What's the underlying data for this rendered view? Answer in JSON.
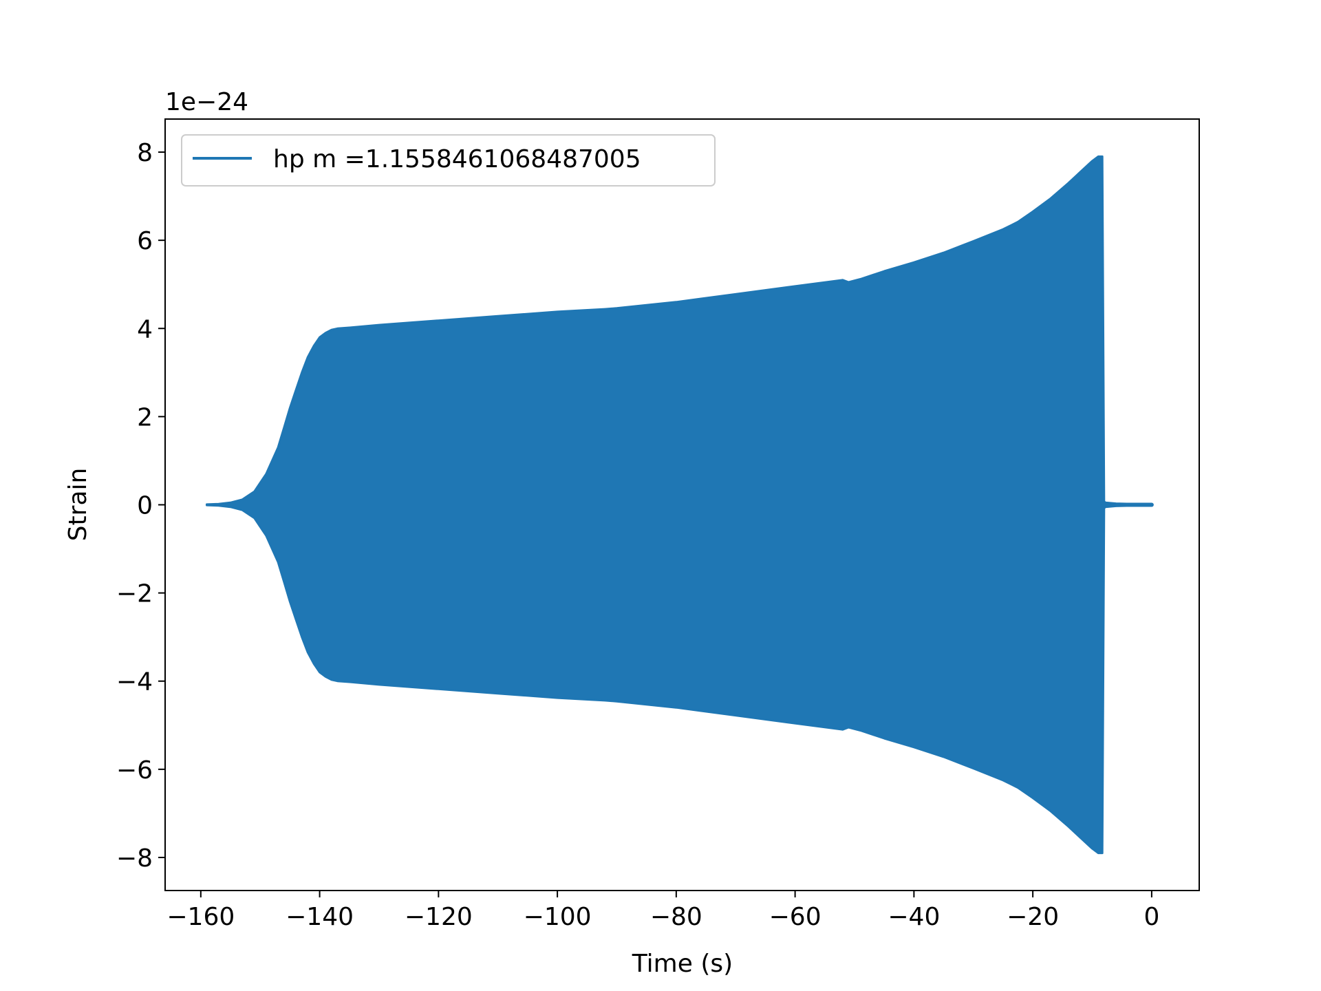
{
  "chart_data": {
    "type": "line",
    "title": "",
    "xlabel": "Time (s)",
    "ylabel": "Strain",
    "y_offset_text": "1e−24",
    "xlim": [
      -166,
      8
    ],
    "ylim": [
      -8.75,
      8.75
    ],
    "xticks": [
      -160,
      -140,
      -120,
      -100,
      -80,
      -60,
      -40,
      -20,
      0
    ],
    "xtick_labels": [
      "−160",
      "−140",
      "−120",
      "−100",
      "−80",
      "−60",
      "−40",
      "−20",
      "0"
    ],
    "yticks": [
      8,
      6,
      4,
      2,
      0,
      -2,
      -4,
      -6,
      -8
    ],
    "ytick_labels": [
      "8",
      "6",
      "4",
      "2",
      "0",
      "−2",
      "−4",
      "−6",
      "−8"
    ],
    "grid": false,
    "legend_position": "top-left",
    "series": [
      {
        "name": "hp m =1.1558461068487005",
        "color": "#1f77b4",
        "envelope_x": [
          -159,
          -157,
          -155,
          -153,
          -151,
          -149,
          -147,
          -146,
          -145,
          -144,
          -143,
          -142,
          -141,
          -140,
          -139,
          -138,
          -137,
          -135,
          -130,
          -120,
          -110,
          -100,
          -92,
          -90,
          -85,
          -80,
          -70,
          -60,
          -52,
          -51,
          -49,
          -45,
          -40,
          -35,
          -30,
          -25,
          -23.5,
          -22.5,
          -20,
          -17,
          -14,
          -12,
          -10,
          -9,
          -8.3,
          -8.0,
          -7.8,
          -6,
          -3,
          0
        ],
        "envelope_upper": [
          0.01,
          0.02,
          0.05,
          0.12,
          0.3,
          0.7,
          1.3,
          1.75,
          2.2,
          2.6,
          3.0,
          3.35,
          3.6,
          3.8,
          3.9,
          3.97,
          4.0,
          4.02,
          4.08,
          4.18,
          4.28,
          4.38,
          4.44,
          4.46,
          4.53,
          4.6,
          4.78,
          4.96,
          5.1,
          5.05,
          5.12,
          5.3,
          5.5,
          5.72,
          5.98,
          6.25,
          6.35,
          6.42,
          6.65,
          6.95,
          7.3,
          7.55,
          7.8,
          7.9,
          7.9,
          0.08,
          0.05,
          0.03,
          0.02,
          0.01
        ],
        "envelope_lower": [
          -0.01,
          -0.02,
          -0.05,
          -0.12,
          -0.3,
          -0.7,
          -1.3,
          -1.75,
          -2.2,
          -2.6,
          -3.0,
          -3.35,
          -3.6,
          -3.8,
          -3.9,
          -3.97,
          -4.0,
          -4.02,
          -4.08,
          -4.18,
          -4.28,
          -4.38,
          -4.44,
          -4.46,
          -4.53,
          -4.6,
          -4.78,
          -4.96,
          -5.1,
          -5.05,
          -5.12,
          -5.3,
          -5.5,
          -5.72,
          -5.98,
          -6.25,
          -6.35,
          -6.42,
          -6.65,
          -6.95,
          -7.3,
          -7.55,
          -7.8,
          -7.9,
          -7.9,
          -0.08,
          -0.05,
          -0.03,
          -0.02,
          -0.01
        ]
      }
    ]
  }
}
